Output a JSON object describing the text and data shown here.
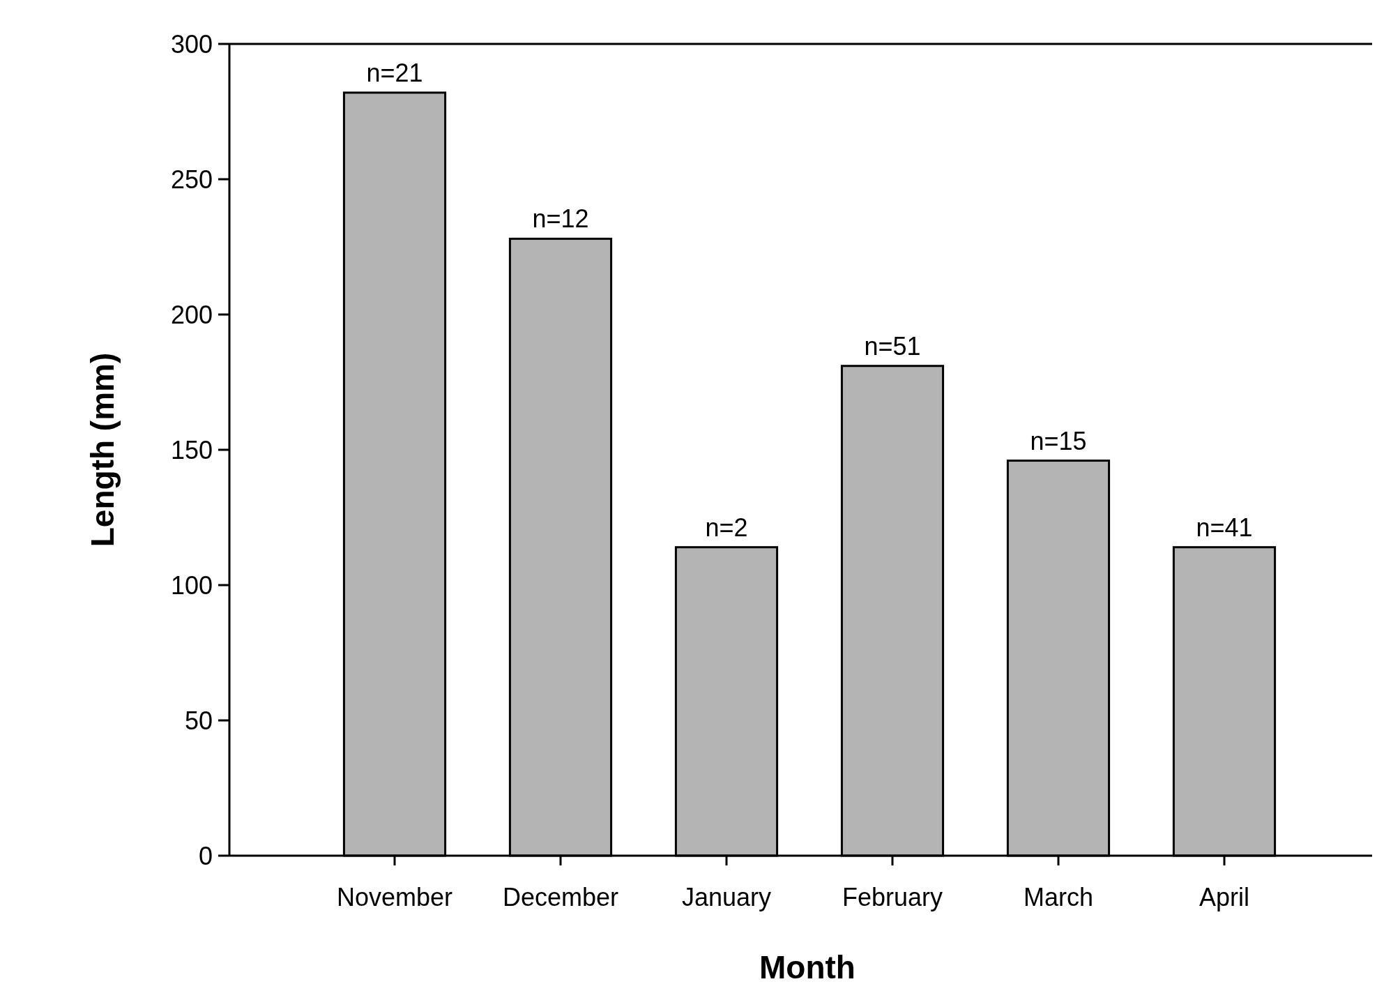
{
  "chart_data": {
    "type": "bar",
    "xlabel": "Month",
    "ylabel": "Length (mm)",
    "categories": [
      "November",
      "December",
      "January",
      "February",
      "March",
      "April"
    ],
    "values": [
      282,
      228,
      114,
      181,
      146,
      114
    ],
    "color": "#b4b4b4",
    "ylim": [
      0,
      300
    ],
    "yticks": [
      0,
      50,
      100,
      150,
      200,
      250,
      300
    ],
    "annotations": [
      {
        "text": "n=21",
        "x": "November",
        "y": 282
      },
      {
        "text": "n=12",
        "x": "December",
        "y": 228
      },
      {
        "text": "n=2",
        "x": "January",
        "y": 114
      },
      {
        "text": "n=51",
        "x": "February",
        "y": 181
      },
      {
        "text": "n=15",
        "x": "March",
        "y": 146
      },
      {
        "text": "n=41",
        "x": "April",
        "y": 114
      }
    ]
  }
}
